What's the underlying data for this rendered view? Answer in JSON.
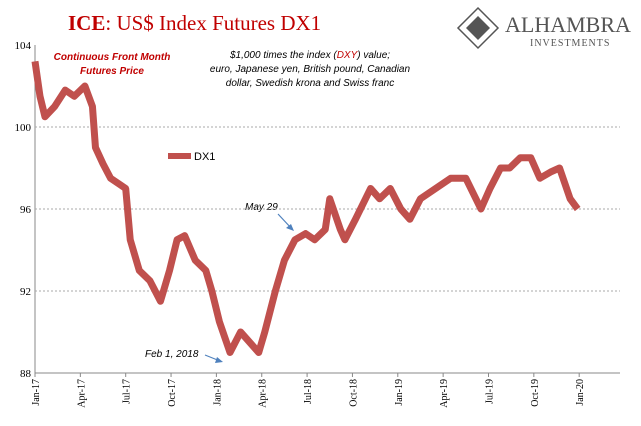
{
  "chart_data": {
    "type": "line",
    "title": [
      "ICE",
      ": US$ Index Futures DX1"
    ],
    "subtitle": [
      "Continuous  Front Month",
      "Futures Price"
    ],
    "note": [
      [
        "$1,000 times the index (",
        "DXY",
        ") value;"
      ],
      [
        "euro, Japanese yen, British pound, Canadian"
      ],
      [
        "dollar, Swedish krona and Swiss franc"
      ]
    ],
    "logo": [
      "ALHAMBRA",
      "INVESTMENTS"
    ],
    "annotations": [
      "May 29",
      "Feb 1, 2018"
    ],
    "x": [
      0,
      0.33,
      0.66,
      1.3,
      2.0,
      2.6,
      3.3,
      3.8,
      4.0,
      4.5,
      5.0,
      5.6,
      6.0,
      6.3,
      6.9,
      7.6,
      8.3,
      8.9,
      9.4,
      9.9,
      10.6,
      11.3,
      11.7,
      12.2,
      12.9,
      13.6,
      14.2,
      14.8,
      15.2,
      15.9,
      16.5,
      17.2,
      17.9,
      18.5,
      19.2,
      19.5,
      20.2,
      20.5,
      21.2,
      22.2,
      22.8,
      23.5,
      24.2,
      24.8,
      25.5,
      26.5,
      27.5,
      28.5,
      29.5,
      30.1,
      30.8,
      31.4,
      32.1,
      32.8,
      33.4,
      34.1,
      34.7,
      35.4,
      35.9
    ],
    "series": [
      {
        "name": "DX1",
        "color": "#c0504d",
        "values": [
          103.2,
          101.5,
          100.5,
          101,
          101.8,
          101.5,
          102,
          101,
          99,
          98.2,
          97.5,
          97.2,
          97,
          94.5,
          93,
          92.5,
          91.5,
          93,
          94.5,
          94.7,
          93.5,
          93,
          92,
          90.5,
          89,
          90,
          89.5,
          89,
          90,
          92,
          93.5,
          94.5,
          94.8,
          94.5,
          95,
          96.5,
          95,
          94.5,
          95.5,
          97,
          96.5,
          97,
          96,
          95.5,
          96.5,
          97,
          97.5,
          97.5,
          96,
          97,
          98,
          98,
          98.5,
          98.5,
          97.5,
          97.8,
          98,
          96.5,
          96
        ]
      }
    ],
    "xlim": [
      0,
      38.7
    ],
    "xticks": [
      {
        "value": 0,
        "label": "Jan-17"
      },
      {
        "value": 3,
        "label": "Apr-17"
      },
      {
        "value": 6,
        "label": "Jul-17"
      },
      {
        "value": 9,
        "label": "Oct-17"
      },
      {
        "value": 12,
        "label": "Jan-18"
      },
      {
        "value": 15,
        "label": "Apr-18"
      },
      {
        "value": 18,
        "label": "Jul-18"
      },
      {
        "value": 21,
        "label": "Oct-18"
      },
      {
        "value": 24,
        "label": "Jan-19"
      },
      {
        "value": 27,
        "label": "Apr-19"
      },
      {
        "value": 30,
        "label": "Jul-19"
      },
      {
        "value": 33,
        "label": "Oct-19"
      },
      {
        "value": 36,
        "label": "Jan-20"
      }
    ],
    "ylim": [
      88,
      104
    ],
    "yticks": [
      88,
      92,
      96,
      100,
      104
    ],
    "grid": true
  }
}
